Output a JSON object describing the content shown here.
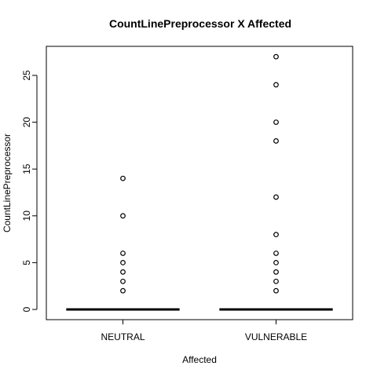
{
  "chart_data": {
    "type": "boxplot",
    "title": "CountLinePreprocessor X Affected",
    "xlabel": "Affected",
    "ylabel": "CountLinePreprocessor",
    "categories": [
      "NEUTRAL",
      "VULNERABLE"
    ],
    "ylim": [
      -1,
      28
    ],
    "yticks": [
      0,
      5,
      10,
      15,
      20,
      25
    ],
    "groups": [
      {
        "name": "NEUTRAL",
        "q1": 0,
        "median": 0,
        "q3": 0,
        "whisker_low": 0,
        "whisker_high": 0,
        "outliers": [
          2,
          3,
          4,
          5,
          6,
          10,
          14
        ]
      },
      {
        "name": "VULNERABLE",
        "q1": 0,
        "median": 0,
        "q3": 0,
        "whisker_low": 0,
        "whisker_high": 0,
        "outliers": [
          2,
          3,
          4,
          5,
          6,
          8,
          12,
          18,
          20,
          24,
          27
        ]
      }
    ],
    "grid": false,
    "legend": "none"
  }
}
